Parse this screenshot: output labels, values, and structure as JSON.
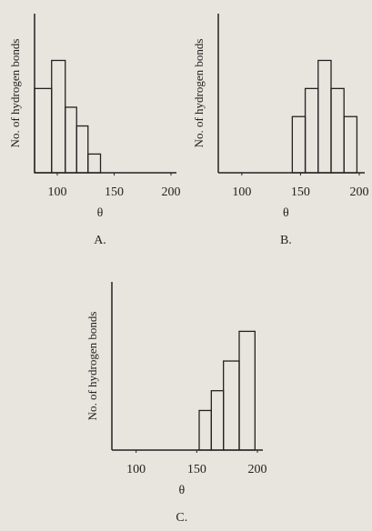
{
  "chart_data": [
    {
      "type": "histogram",
      "title": "A.",
      "x_label": "θ",
      "y_label": "No. of hydrogen bonds",
      "bins": [
        80,
        95,
        107,
        117,
        127,
        138
      ],
      "values": [
        4.5,
        6,
        3.5,
        2.5,
        1
      ],
      "xlim": [
        80,
        200
      ],
      "xticks": [
        100,
        150,
        200
      ],
      "ylim": [
        0,
        8.5
      ],
      "color": "#222222"
    },
    {
      "type": "histogram",
      "title": "B.",
      "x_label": "θ",
      "y_label": "No. of hydrogen bonds",
      "bins": [
        143,
        154,
        165,
        176,
        187,
        198
      ],
      "values": [
        3,
        4.5,
        6,
        4.5,
        3
      ],
      "xlim": [
        80,
        200
      ],
      "xticks": [
        100,
        150,
        200
      ],
      "ylim": [
        0,
        8.5
      ],
      "color": "#222222"
    },
    {
      "type": "histogram",
      "title": "C.",
      "x_label": "θ",
      "y_label": "No. of hydrogen bonds",
      "bins": [
        152,
        162,
        172,
        185,
        198
      ],
      "values": [
        2,
        3,
        4.5,
        6
      ],
      "xlim": [
        80,
        200
      ],
      "xticks": [
        100,
        150,
        200
      ],
      "ylim": [
        0,
        8.5
      ],
      "color": "#222222"
    }
  ]
}
